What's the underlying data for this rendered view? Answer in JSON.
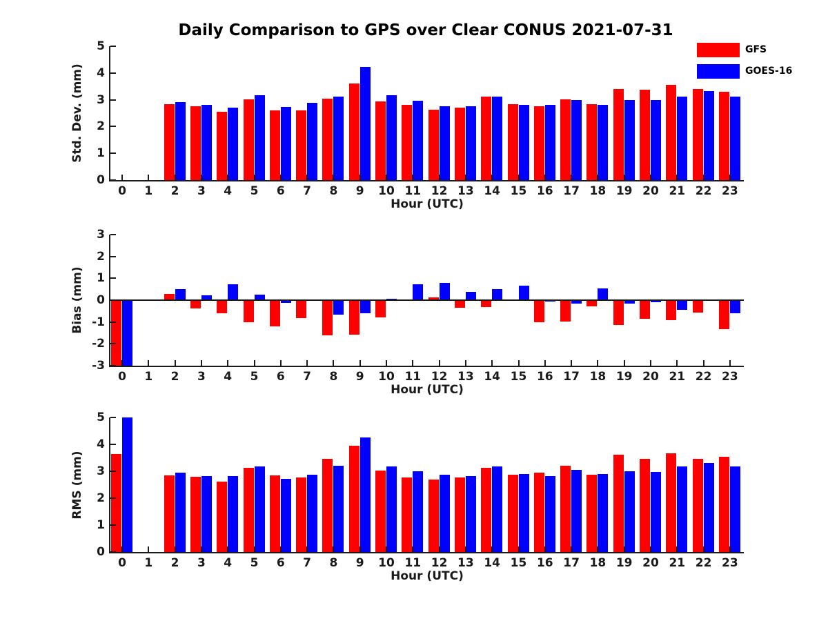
{
  "page": {
    "title": "Daily Comparison to GPS over Clear CONUS 2021-07-31"
  },
  "colors": {
    "gfs": "#ff0000",
    "goes16": "#0000ff",
    "axis": "#1a1a1a"
  },
  "legend": {
    "position": "top-right-outside",
    "items": [
      {
        "label": "GFS",
        "color": "#ff0000"
      },
      {
        "label": "GOES-16",
        "color": "#0000ff"
      }
    ]
  },
  "chart_data": [
    {
      "type": "bar",
      "title": "Daily Comparison to GPS over Clear CONUS 2021-07-31",
      "xlabel": "Hour (UTC)",
      "ylabel": "Std. Dev. (mm)",
      "ylim": [
        0,
        5
      ],
      "yticks": [
        0,
        1,
        2,
        3,
        4,
        5
      ],
      "grid": false,
      "categories": [
        0,
        1,
        2,
        3,
        4,
        5,
        6,
        7,
        8,
        9,
        10,
        11,
        12,
        13,
        14,
        15,
        16,
        17,
        18,
        19,
        20,
        21,
        22,
        23
      ],
      "series": [
        {
          "name": "GFS",
          "color": "#ff0000",
          "values": [
            null,
            null,
            2.84,
            2.75,
            2.55,
            3.01,
            2.6,
            2.61,
            3.05,
            3.61,
            2.93,
            2.8,
            2.62,
            2.7,
            3.11,
            2.84,
            2.76,
            3.02,
            2.84,
            3.41,
            3.37,
            3.56,
            3.4,
            3.29
          ]
        },
        {
          "name": "GOES-16",
          "color": "#0000ff",
          "values": [
            null,
            null,
            2.92,
            2.82,
            2.7,
            3.17,
            2.72,
            2.88,
            3.12,
            4.22,
            3.18,
            2.96,
            2.77,
            2.77,
            3.12,
            2.82,
            2.8,
            3.0,
            2.81,
            2.98,
            2.98,
            3.13,
            3.32,
            3.13
          ]
        }
      ]
    },
    {
      "type": "bar",
      "title": "",
      "xlabel": "Hour (UTC)",
      "ylabel": "Bias (mm)",
      "ylim": [
        -3,
        3
      ],
      "yticks": [
        -3,
        -2,
        -1,
        0,
        1,
        2,
        3
      ],
      "grid": false,
      "categories": [
        0,
        1,
        2,
        3,
        4,
        5,
        6,
        7,
        8,
        9,
        10,
        11,
        12,
        13,
        14,
        15,
        16,
        17,
        18,
        19,
        20,
        21,
        22,
        23
      ],
      "series": [
        {
          "name": "GFS",
          "color": "#ff0000",
          "values": [
            -3.0,
            null,
            0.27,
            -0.38,
            -0.6,
            -1.01,
            -1.2,
            -0.82,
            -1.6,
            -1.58,
            -0.8,
            0.03,
            0.12,
            -0.36,
            -0.33,
            0.03,
            -1.0,
            -0.98,
            -0.28,
            -1.13,
            -0.85,
            -0.9,
            -0.58,
            -1.32
          ]
        },
        {
          "name": "GOES-16",
          "color": "#0000ff",
          "values": [
            -3.0,
            null,
            0.49,
            0.21,
            0.73,
            0.24,
            -0.14,
            0.04,
            -0.66,
            -0.59,
            0.07,
            0.72,
            0.8,
            0.38,
            0.49,
            0.65,
            -0.05,
            -0.15,
            0.53,
            -0.15,
            -0.1,
            -0.43,
            0.0,
            -0.6
          ]
        }
      ]
    },
    {
      "type": "bar",
      "title": "",
      "xlabel": "Hour (UTC)",
      "ylabel": "RMS (mm)",
      "ylim": [
        0,
        5
      ],
      "yticks": [
        0,
        1,
        2,
        3,
        4,
        5
      ],
      "grid": false,
      "categories": [
        0,
        1,
        2,
        3,
        4,
        5,
        6,
        7,
        8,
        9,
        10,
        11,
        12,
        13,
        14,
        15,
        16,
        17,
        18,
        19,
        20,
        21,
        22,
        23
      ],
      "series": [
        {
          "name": "GFS",
          "color": "#ff0000",
          "values": [
            3.63,
            null,
            2.84,
            2.79,
            2.61,
            3.14,
            2.84,
            2.76,
            3.46,
            3.95,
            3.02,
            2.77,
            2.68,
            2.76,
            3.14,
            2.88,
            2.94,
            3.21,
            2.88,
            3.62,
            3.47,
            3.66,
            3.46,
            3.54
          ]
        },
        {
          "name": "GOES-16",
          "color": "#0000ff",
          "values": [
            5.0,
            null,
            2.96,
            2.81,
            2.81,
            3.19,
            2.72,
            2.86,
            3.2,
            4.25,
            3.17,
            3.0,
            2.88,
            2.81,
            3.18,
            2.91,
            2.81,
            3.04,
            2.89,
            3.0,
            2.97,
            3.18,
            3.31,
            3.19
          ]
        }
      ]
    }
  ]
}
